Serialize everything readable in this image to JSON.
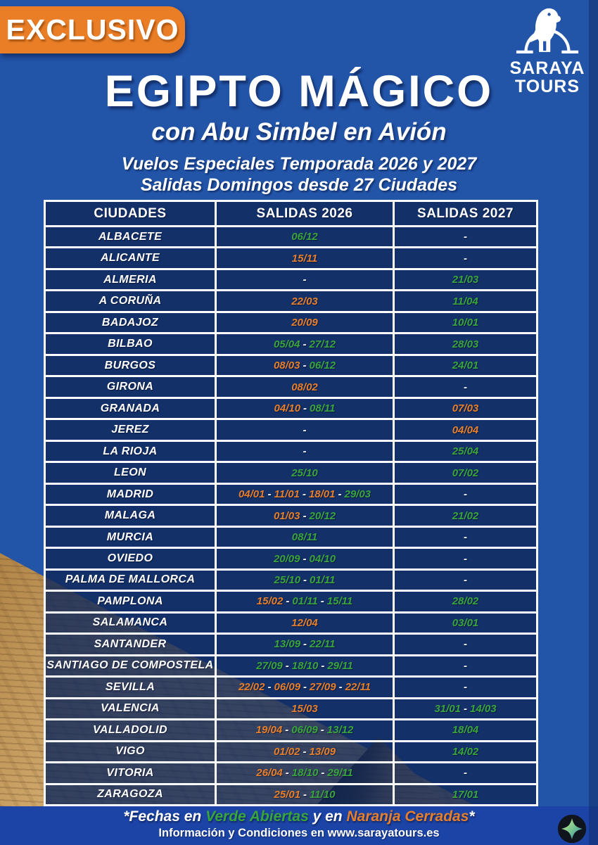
{
  "badge": {
    "label": "EXCLUSIVO"
  },
  "logo": {
    "line1": "SARAYA",
    "line2": "TOURS"
  },
  "header": {
    "title": "EGIPTO MÁGICO",
    "subtitle": "con Abu Simbel en Avión",
    "info1": "Vuelos Especiales Temporada 2026 y 2027",
    "info2": "Salidas Domingos desde 27 Ciudades"
  },
  "table": {
    "columns": [
      "CIUDADES",
      "SALIDAS 2026",
      "SALIDAS 2027"
    ],
    "rows": [
      {
        "city": "ALBACETE",
        "s2026": [
          {
            "t": "06/12",
            "c": "green"
          }
        ],
        "s2027": [
          {
            "t": "-",
            "c": "white"
          }
        ]
      },
      {
        "city": "ALICANTE",
        "s2026": [
          {
            "t": "15/11",
            "c": "orange"
          }
        ],
        "s2027": [
          {
            "t": "-",
            "c": "white"
          }
        ]
      },
      {
        "city": "ALMERIA",
        "s2026": [
          {
            "t": "-",
            "c": "white"
          }
        ],
        "s2027": [
          {
            "t": "21/03",
            "c": "green"
          }
        ]
      },
      {
        "city": "A CORUÑA",
        "s2026": [
          {
            "t": "22/03",
            "c": "orange"
          }
        ],
        "s2027": [
          {
            "t": "11/04",
            "c": "green"
          }
        ]
      },
      {
        "city": "BADAJOZ",
        "s2026": [
          {
            "t": "20/09",
            "c": "orange"
          }
        ],
        "s2027": [
          {
            "t": "10/01",
            "c": "green"
          }
        ]
      },
      {
        "city": "BILBAO",
        "s2026": [
          {
            "t": "05/04",
            "c": "green"
          },
          {
            "t": "27/12",
            "c": "green"
          }
        ],
        "s2027": [
          {
            "t": "28/03",
            "c": "green"
          }
        ]
      },
      {
        "city": "BURGOS",
        "s2026": [
          {
            "t": "08/03",
            "c": "orange"
          },
          {
            "t": "06/12",
            "c": "green"
          }
        ],
        "s2027": [
          {
            "t": "24/01",
            "c": "green"
          }
        ]
      },
      {
        "city": "GIRONA",
        "s2026": [
          {
            "t": "08/02",
            "c": "orange"
          }
        ],
        "s2027": [
          {
            "t": "-",
            "c": "white"
          }
        ]
      },
      {
        "city": "GRANADA",
        "s2026": [
          {
            "t": "04/10",
            "c": "orange"
          },
          {
            "t": "08/11",
            "c": "green"
          }
        ],
        "s2027": [
          {
            "t": "07/03",
            "c": "orange"
          }
        ]
      },
      {
        "city": "JEREZ",
        "s2026": [
          {
            "t": "-",
            "c": "white"
          }
        ],
        "s2027": [
          {
            "t": "04/04",
            "c": "orange"
          }
        ]
      },
      {
        "city": "LA RIOJA",
        "s2026": [
          {
            "t": "-",
            "c": "white"
          }
        ],
        "s2027": [
          {
            "t": "25/04",
            "c": "green"
          }
        ]
      },
      {
        "city": "LEON",
        "s2026": [
          {
            "t": "25/10",
            "c": "green"
          }
        ],
        "s2027": [
          {
            "t": "07/02",
            "c": "green"
          }
        ]
      },
      {
        "city": "MADRID",
        "s2026": [
          {
            "t": "04/01",
            "c": "orange"
          },
          {
            "t": "11/01",
            "c": "orange"
          },
          {
            "t": "18/01",
            "c": "orange"
          },
          {
            "t": "29/03",
            "c": "green"
          }
        ],
        "s2027": [
          {
            "t": "-",
            "c": "white"
          }
        ]
      },
      {
        "city": "MALAGA",
        "s2026": [
          {
            "t": "01/03",
            "c": "orange"
          },
          {
            "t": "20/12",
            "c": "green"
          }
        ],
        "s2027": [
          {
            "t": "21/02",
            "c": "green"
          }
        ]
      },
      {
        "city": "MURCIA",
        "s2026": [
          {
            "t": "08/11",
            "c": "green"
          }
        ],
        "s2027": [
          {
            "t": "-",
            "c": "white"
          }
        ]
      },
      {
        "city": "OVIEDO",
        "s2026": [
          {
            "t": "20/09",
            "c": "green"
          },
          {
            "t": "04/10",
            "c": "green"
          }
        ],
        "s2027": [
          {
            "t": "-",
            "c": "white"
          }
        ]
      },
      {
        "city": "PALMA DE MALLORCA",
        "s2026": [
          {
            "t": "25/10",
            "c": "green"
          },
          {
            "t": "01/11",
            "c": "green"
          }
        ],
        "s2027": [
          {
            "t": "-",
            "c": "white"
          }
        ]
      },
      {
        "city": "PAMPLONA",
        "s2026": [
          {
            "t": "15/02",
            "c": "orange"
          },
          {
            "t": "01/11",
            "c": "green"
          },
          {
            "t": "15/11",
            "c": "green"
          }
        ],
        "s2027": [
          {
            "t": "28/02",
            "c": "green"
          }
        ]
      },
      {
        "city": "SALAMANCA",
        "s2026": [
          {
            "t": "12/04",
            "c": "orange"
          }
        ],
        "s2027": [
          {
            "t": "03/01",
            "c": "green"
          }
        ]
      },
      {
        "city": "SANTANDER",
        "s2026": [
          {
            "t": "13/09",
            "c": "green"
          },
          {
            "t": "22/11",
            "c": "green"
          }
        ],
        "s2027": [
          {
            "t": "-",
            "c": "white"
          }
        ]
      },
      {
        "city": "SANTIAGO DE COMPOSTELA",
        "s2026": [
          {
            "t": "27/09",
            "c": "green"
          },
          {
            "t": "18/10",
            "c": "green"
          },
          {
            "t": "29/11",
            "c": "green"
          }
        ],
        "s2027": [
          {
            "t": "-",
            "c": "white"
          }
        ]
      },
      {
        "city": "SEVILLA",
        "s2026": [
          {
            "t": "22/02",
            "c": "orange"
          },
          {
            "t": "06/09",
            "c": "orange"
          },
          {
            "t": "27/09",
            "c": "orange"
          },
          {
            "t": "22/11",
            "c": "orange"
          }
        ],
        "s2027": [
          {
            "t": "-",
            "c": "white"
          }
        ]
      },
      {
        "city": "VALENCIA",
        "s2026": [
          {
            "t": "15/03",
            "c": "orange"
          }
        ],
        "s2027": [
          {
            "t": "31/01",
            "c": "green"
          },
          {
            "t": "14/03",
            "c": "green"
          }
        ]
      },
      {
        "city": "VALLADOLID",
        "s2026": [
          {
            "t": "19/04",
            "c": "orange"
          },
          {
            "t": "06/09",
            "c": "green"
          },
          {
            "t": "13/12",
            "c": "green"
          }
        ],
        "s2027": [
          {
            "t": "18/04",
            "c": "green"
          }
        ]
      },
      {
        "city": "VIGO",
        "s2026": [
          {
            "t": "01/02",
            "c": "orange"
          },
          {
            "t": "13/09",
            "c": "orange"
          }
        ],
        "s2027": [
          {
            "t": "14/02",
            "c": "green"
          }
        ]
      },
      {
        "city": "VITORIA",
        "s2026": [
          {
            "t": "26/04",
            "c": "orange"
          },
          {
            "t": "18/10",
            "c": "green"
          },
          {
            "t": "29/11",
            "c": "green"
          }
        ],
        "s2027": [
          {
            "t": "-",
            "c": "white"
          }
        ]
      },
      {
        "city": "ZARAGOZA",
        "s2026": [
          {
            "t": "25/01",
            "c": "orange"
          },
          {
            "t": "11/10",
            "c": "green"
          }
        ],
        "s2027": [
          {
            "t": "17/01",
            "c": "green"
          }
        ]
      }
    ]
  },
  "footer": {
    "note_prefix": "*Fechas en ",
    "note_green": "Verde Abiertas",
    "note_mid": " y en ",
    "note_orange": "Naranja Cerradas",
    "note_suffix": "*",
    "info": "Información y Condiciones en www.sarayatours.es"
  },
  "colors": {
    "page_blue": "#2254a8",
    "cell_navy": "#1d3c7a",
    "badge_orange": "#e97e27",
    "date_green": "#3aa43c",
    "date_orange": "#e67f2b",
    "footer_blue": "#1c44a6"
  }
}
